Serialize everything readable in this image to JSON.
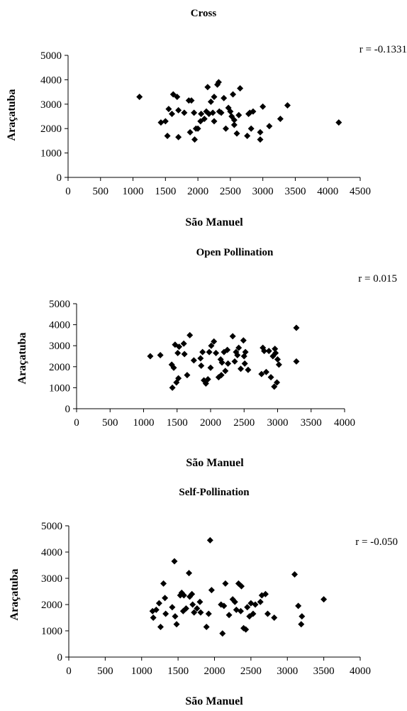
{
  "chart_data": [
    {
      "type": "scatter",
      "title": "Cross",
      "xlabel": "São Manuel",
      "ylabel": "Araçatuba",
      "annotation": "r = -0.1331",
      "xlim": [
        0,
        4500
      ],
      "ylim": [
        0,
        5000
      ],
      "xticks": [
        "0",
        "500",
        "1000",
        "1500",
        "2000",
        "2500",
        "3000",
        "3500",
        "4000",
        "4500"
      ],
      "yticks": [
        "0",
        "1000",
        "2000",
        "3000",
        "4000",
        "5000"
      ],
      "marker": "diamond",
      "color": "#000000",
      "points": [
        [
          1100,
          3300
        ],
        [
          1430,
          2250
        ],
        [
          1500,
          2300
        ],
        [
          1530,
          1700
        ],
        [
          1550,
          2800
        ],
        [
          1600,
          2600
        ],
        [
          1620,
          3400
        ],
        [
          1680,
          3300
        ],
        [
          1700,
          1650
        ],
        [
          1700,
          2750
        ],
        [
          1790,
          2650
        ],
        [
          1860,
          3150
        ],
        [
          1880,
          1850
        ],
        [
          1900,
          3150
        ],
        [
          1940,
          2650
        ],
        [
          1950,
          1550
        ],
        [
          1970,
          2000
        ],
        [
          2000,
          2000
        ],
        [
          2040,
          2300
        ],
        [
          2050,
          2600
        ],
        [
          2100,
          2400
        ],
        [
          2130,
          2700
        ],
        [
          2150,
          3700
        ],
        [
          2170,
          2600
        ],
        [
          2200,
          3100
        ],
        [
          2230,
          2650
        ],
        [
          2250,
          3300
        ],
        [
          2250,
          2300
        ],
        [
          2300,
          3800
        ],
        [
          2320,
          3900
        ],
        [
          2330,
          2700
        ],
        [
          2360,
          2650
        ],
        [
          2400,
          3250
        ],
        [
          2430,
          2000
        ],
        [
          2470,
          2850
        ],
        [
          2500,
          2700
        ],
        [
          2520,
          2500
        ],
        [
          2540,
          3400
        ],
        [
          2560,
          2350
        ],
        [
          2560,
          2150
        ],
        [
          2600,
          1800
        ],
        [
          2630,
          2550
        ],
        [
          2650,
          3650
        ],
        [
          2760,
          1700
        ],
        [
          2780,
          2600
        ],
        [
          2800,
          2650
        ],
        [
          2820,
          2000
        ],
        [
          2850,
          2700
        ],
        [
          2960,
          1850
        ],
        [
          2960,
          1550
        ],
        [
          3000,
          2900
        ],
        [
          3100,
          2100
        ],
        [
          3270,
          2400
        ],
        [
          3380,
          2950
        ],
        [
          4170,
          2250
        ]
      ]
    },
    {
      "type": "scatter",
      "title": "Open Pollination",
      "xlabel": "São Manuel",
      "ylabel": "Araçatuba",
      "annotation": "r = 0.015",
      "xlim": [
        0,
        4000
      ],
      "ylim": [
        0,
        5000
      ],
      "xticks": [
        "0",
        "500",
        "1000",
        "1500",
        "2000",
        "2500",
        "3000",
        "3500",
        "4000"
      ],
      "yticks": [
        "0",
        "1000",
        "2000",
        "3000",
        "4000",
        "5000"
      ],
      "marker": "diamond",
      "color": "#000000",
      "points": [
        [
          1100,
          2500
        ],
        [
          1250,
          2550
        ],
        [
          1420,
          2100
        ],
        [
          1430,
          1000
        ],
        [
          1450,
          1950
        ],
        [
          1470,
          3050
        ],
        [
          1490,
          1250
        ],
        [
          1510,
          2650
        ],
        [
          1520,
          1450
        ],
        [
          1530,
          2950
        ],
        [
          1600,
          3100
        ],
        [
          1610,
          2600
        ],
        [
          1650,
          1600
        ],
        [
          1690,
          3500
        ],
        [
          1750,
          2300
        ],
        [
          1850,
          2400
        ],
        [
          1860,
          2050
        ],
        [
          1880,
          2700
        ],
        [
          1900,
          1350
        ],
        [
          1930,
          1200
        ],
        [
          1960,
          1400
        ],
        [
          1980,
          2700
        ],
        [
          2000,
          1950
        ],
        [
          2010,
          3000
        ],
        [
          2050,
          3200
        ],
        [
          2080,
          2650
        ],
        [
          2120,
          1500
        ],
        [
          2150,
          2350
        ],
        [
          2160,
          1600
        ],
        [
          2170,
          2200
        ],
        [
          2200,
          2700
        ],
        [
          2220,
          1800
        ],
        [
          2250,
          2800
        ],
        [
          2260,
          2150
        ],
        [
          2330,
          3450
        ],
        [
          2360,
          2250
        ],
        [
          2380,
          2700
        ],
        [
          2400,
          2550
        ],
        [
          2420,
          2900
        ],
        [
          2450,
          1900
        ],
        [
          2490,
          3250
        ],
        [
          2500,
          2500
        ],
        [
          2510,
          2150
        ],
        [
          2520,
          2700
        ],
        [
          2560,
          1850
        ],
        [
          2760,
          1650
        ],
        [
          2780,
          2900
        ],
        [
          2800,
          2750
        ],
        [
          2830,
          1750
        ],
        [
          2870,
          2750
        ],
        [
          2900,
          1500
        ],
        [
          2930,
          2500
        ],
        [
          2950,
          1050
        ],
        [
          2960,
          2850
        ],
        [
          2970,
          2650
        ],
        [
          2990,
          1250
        ],
        [
          3020,
          2100
        ],
        [
          3000,
          2350
        ],
        [
          3280,
          2250
        ],
        [
          3280,
          3850
        ]
      ]
    },
    {
      "type": "scatter",
      "title": "Self-Pollination",
      "xlabel": "São Manuel",
      "ylabel": "Araçatuba",
      "annotation": "r = -0.050",
      "xlim": [
        0,
        4000
      ],
      "ylim": [
        0,
        5000
      ],
      "xticks": [
        "0",
        "500",
        "1000",
        "1500",
        "2000",
        "2500",
        "3000",
        "3500",
        "4000"
      ],
      "yticks": [
        "0",
        "1000",
        "2000",
        "3000",
        "4000",
        "5000"
      ],
      "marker": "diamond",
      "color": "#000000",
      "points": [
        [
          1150,
          1750
        ],
        [
          1160,
          1500
        ],
        [
          1200,
          1800
        ],
        [
          1240,
          2050
        ],
        [
          1260,
          1150
        ],
        [
          1300,
          2800
        ],
        [
          1320,
          2250
        ],
        [
          1330,
          1650
        ],
        [
          1420,
          1900
        ],
        [
          1450,
          3650
        ],
        [
          1460,
          1550
        ],
        [
          1480,
          1250
        ],
        [
          1530,
          2350
        ],
        [
          1550,
          2450
        ],
        [
          1570,
          1750
        ],
        [
          1580,
          2350
        ],
        [
          1610,
          1850
        ],
        [
          1650,
          3200
        ],
        [
          1660,
          2300
        ],
        [
          1690,
          2400
        ],
        [
          1700,
          2000
        ],
        [
          1720,
          1700
        ],
        [
          1760,
          1850
        ],
        [
          1800,
          2100
        ],
        [
          1810,
          1700
        ],
        [
          1890,
          1150
        ],
        [
          1920,
          1650
        ],
        [
          1940,
          4450
        ],
        [
          1960,
          2550
        ],
        [
          2090,
          2000
        ],
        [
          2110,
          900
        ],
        [
          2130,
          1950
        ],
        [
          2150,
          2800
        ],
        [
          2200,
          1600
        ],
        [
          2250,
          2200
        ],
        [
          2280,
          2100
        ],
        [
          2300,
          1800
        ],
        [
          2330,
          2800
        ],
        [
          2360,
          1750
        ],
        [
          2370,
          2700
        ],
        [
          2400,
          1100
        ],
        [
          2430,
          1050
        ],
        [
          2450,
          1900
        ],
        [
          2480,
          1550
        ],
        [
          2500,
          2050
        ],
        [
          2530,
          1650
        ],
        [
          2560,
          2000
        ],
        [
          2630,
          2100
        ],
        [
          2650,
          2350
        ],
        [
          2700,
          2400
        ],
        [
          2730,
          1650
        ],
        [
          2820,
          1500
        ],
        [
          3100,
          3150
        ],
        [
          3150,
          1950
        ],
        [
          3190,
          1250
        ],
        [
          3200,
          1550
        ],
        [
          3500,
          2200
        ]
      ]
    }
  ]
}
